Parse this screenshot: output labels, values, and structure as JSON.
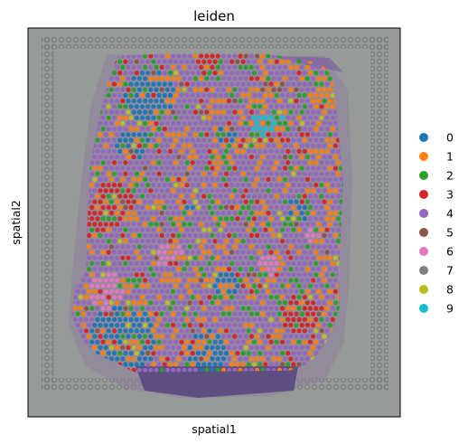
{
  "chart_data": {
    "type": "scatter",
    "title": "leiden",
    "xlabel": "spatial1",
    "ylabel": "spatial2",
    "grid": false,
    "legend_position": "right",
    "background": "grey tissue histology image with fiducial dot frame",
    "series": [
      {
        "name": "0",
        "color": "#1f77b4"
      },
      {
        "name": "1",
        "color": "#ff7f0e"
      },
      {
        "name": "2",
        "color": "#2ca02c"
      },
      {
        "name": "3",
        "color": "#d62728"
      },
      {
        "name": "4",
        "color": "#9467bd"
      },
      {
        "name": "5",
        "color": "#8c564b"
      },
      {
        "name": "6",
        "color": "#e377c2"
      },
      {
        "name": "7",
        "color": "#7f7f7f"
      },
      {
        "name": "8",
        "color": "#bcbd22"
      },
      {
        "name": "9",
        "color": "#17becf"
      }
    ]
  }
}
